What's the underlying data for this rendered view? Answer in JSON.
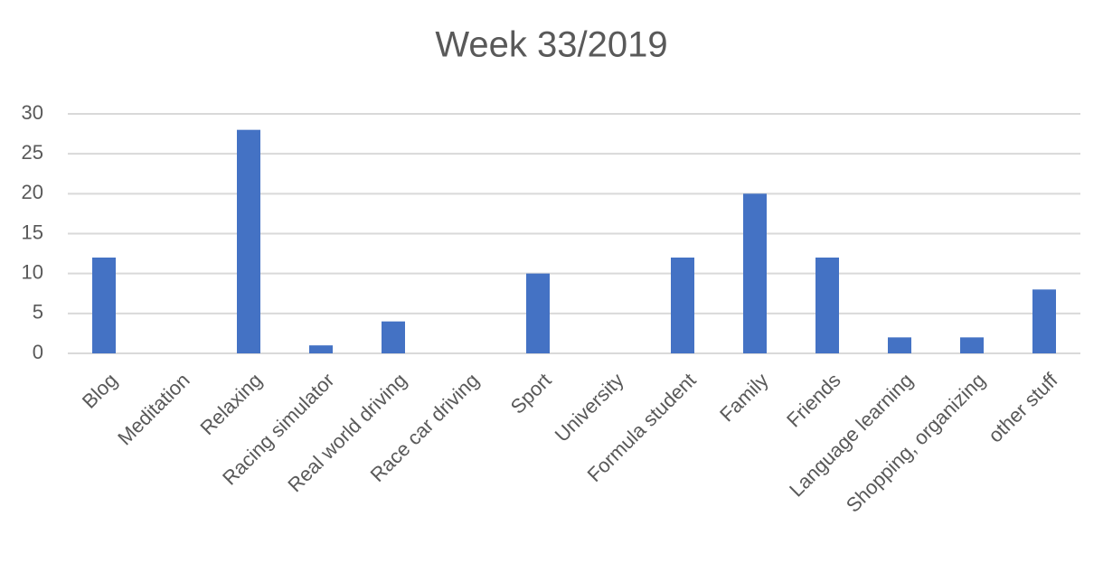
{
  "chart_data": {
    "type": "bar",
    "title": "Week 33/2019",
    "categories": [
      "Blog",
      "Meditation",
      "Relaxing",
      "Racing simulator",
      "Real world driving",
      "Race car driving",
      "Sport",
      "University",
      "Formula student",
      "Family",
      "Friends",
      "Language learning",
      "Shopping, organizing",
      "other stuff"
    ],
    "values": [
      12,
      0,
      28,
      1,
      4,
      0,
      10,
      0,
      12,
      20,
      12,
      2,
      2,
      8
    ],
    "color": "#4472c4",
    "ylim": [
      0,
      30
    ],
    "yticks": [
      0,
      5,
      10,
      15,
      20,
      25,
      30
    ],
    "grid": true
  }
}
